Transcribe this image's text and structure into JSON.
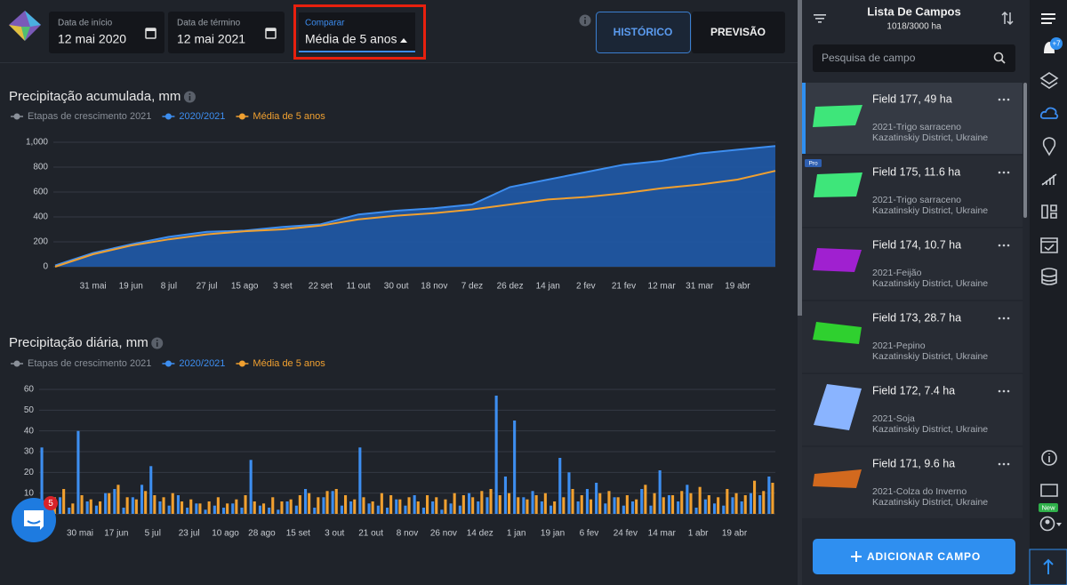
{
  "header": {
    "start_label": "Data de início",
    "start_date": "12 mai 2020",
    "end_label": "Data de término",
    "end_date": "12 mai 2021",
    "compare_label": "Comparar",
    "compare_value": "Média de 5 anos",
    "tabs": [
      "HISTÓRICO",
      "PREVISÃO"
    ]
  },
  "chart_data": [
    {
      "type": "line",
      "title": "Precipitação acumulada, mm",
      "stages_legend": {
        "name": "Etapas de crescimento 2021",
        "color": "#8a9099"
      },
      "categories": [
        null,
        "31 mai",
        "19 jun",
        "8 jul",
        "27 jul",
        "15 ago",
        "3 set",
        "22 set",
        "11 out",
        "30 out",
        "18 nov",
        "7 dez",
        "26 dez",
        "14 jan",
        "2 fev",
        "21 fev",
        "12 mar",
        "31 mar",
        "19 abr",
        null
      ],
      "series": [
        {
          "name": "2020/2021",
          "color": "#3d8ef0",
          "values": [
            10,
            110,
            180,
            240,
            280,
            290,
            320,
            340,
            420,
            450,
            470,
            500,
            640,
            700,
            760,
            820,
            850,
            910,
            940,
            970
          ]
        },
        {
          "name": "Média de 5 anos",
          "color": "#f0a030",
          "values": [
            0,
            100,
            170,
            220,
            260,
            285,
            300,
            330,
            380,
            410,
            430,
            460,
            500,
            540,
            560,
            590,
            630,
            660,
            700,
            770
          ]
        }
      ],
      "ylim": [
        0,
        1000
      ],
      "yticks": [
        0,
        200,
        400,
        600,
        800,
        {
          "value": 1000,
          "label": "1,000"
        }
      ],
      "grid": true
    },
    {
      "type": "bar",
      "title": "Precipitação diária, mm",
      "stages_legend": {
        "name": "Etapas de crescimento 2021",
        "color": "#8a9099"
      },
      "categories": [
        null,
        null,
        null,
        null,
        "30 mai",
        null,
        null,
        null,
        "17 jun",
        null,
        null,
        null,
        "5 jul",
        null,
        null,
        null,
        "23 jul",
        null,
        null,
        null,
        "10 ago",
        null,
        null,
        null,
        "28 ago",
        null,
        null,
        null,
        "15 set",
        null,
        null,
        null,
        "3 out",
        null,
        null,
        null,
        "21 out",
        null,
        null,
        null,
        "8 nov",
        null,
        null,
        null,
        "26 nov",
        null,
        null,
        null,
        "14 dez",
        null,
        null,
        null,
        "1 jan",
        null,
        null,
        null,
        "19 jan",
        null,
        null,
        null,
        "6 fev",
        null,
        null,
        null,
        "24 fev",
        null,
        null,
        null,
        "14 mar",
        null,
        null,
        null,
        "1 abr",
        null,
        null,
        null,
        "19 abr",
        null,
        null,
        null,
        null
      ],
      "series": [
        {
          "name": "2020/2021",
          "color": "#3d8ef0",
          "values": [
            32,
            5,
            8,
            3,
            40,
            6,
            4,
            10,
            12,
            3,
            8,
            14,
            23,
            6,
            4,
            9,
            3,
            5,
            2,
            4,
            3,
            5,
            3,
            26,
            4,
            3,
            2,
            6,
            4,
            12,
            3,
            8,
            11,
            4,
            6,
            32,
            5,
            4,
            3,
            7,
            4,
            9,
            3,
            6,
            2,
            5,
            4,
            10,
            6,
            8,
            57,
            18,
            45,
            8,
            11,
            6,
            4,
            27,
            20,
            6,
            12,
            15,
            5,
            8,
            4,
            6,
            12,
            4,
            21,
            9,
            6,
            14,
            3,
            7,
            5,
            4,
            8,
            6,
            10,
            9,
            18
          ]
        },
        {
          "name": "Média de 5 anos",
          "color": "#f0a030",
          "values": [
            6,
            8,
            12,
            5,
            9,
            7,
            6,
            10,
            14,
            8,
            7,
            11,
            9,
            8,
            10,
            6,
            7,
            5,
            6,
            8,
            5,
            7,
            9,
            6,
            5,
            8,
            6,
            7,
            9,
            10,
            8,
            11,
            12,
            9,
            7,
            8,
            6,
            10,
            9,
            7,
            8,
            6,
            9,
            8,
            7,
            10,
            9,
            8,
            11,
            12,
            9,
            10,
            8,
            7,
            9,
            10,
            6,
            8,
            12,
            9,
            7,
            10,
            11,
            8,
            9,
            7,
            14,
            10,
            8,
            9,
            11,
            10,
            13,
            9,
            8,
            12,
            10,
            9,
            16,
            11,
            15
          ]
        }
      ],
      "ylim": [
        0,
        60
      ],
      "yticks": [
        0,
        10,
        20,
        30,
        40,
        50,
        60
      ],
      "grid": true
    }
  ],
  "sidebar": {
    "title": "Lista De Campos",
    "area": "1018/3000 ha",
    "search_placeholder": "Pesquisa de campo",
    "pro_badge": "Pro",
    "fields": [
      {
        "name": "Field 177, 49 ha",
        "crop": "2021-Trigo sarraceno",
        "location": "Kazatinskiy District, Ukraine",
        "color": "#3ee67a"
      },
      {
        "name": "Field 175, 11.6 ha",
        "crop": "2021-Trigo sarraceno",
        "location": "Kazatinskiy District, Ukraine",
        "color": "#3ee67a"
      },
      {
        "name": "Field 174, 10.7 ha",
        "crop": "2021-Feijão",
        "location": "Kazatinskiy District, Ukraine",
        "color": "#a020d0"
      },
      {
        "name": "Field 173, 28.7 ha",
        "crop": "2021-Pepino",
        "location": "Kazatinskiy District, Ukraine",
        "color": "#2fd02f"
      },
      {
        "name": "Field 172, 7.4 ha",
        "crop": "2021-Soja",
        "location": "Kazatinskiy District, Ukraine",
        "color": "#8ab4ff"
      },
      {
        "name": "Field 171, 9.6 ha",
        "crop": "2021-Colza do Inverno",
        "location": "Kazatinskiy District, Ukraine",
        "color": "#d2691e"
      }
    ],
    "add_button": "ADICIONAR CAMPO"
  },
  "icons": {
    "notification_badge": "+7",
    "new_badge": "New",
    "chat_badge": "5"
  }
}
